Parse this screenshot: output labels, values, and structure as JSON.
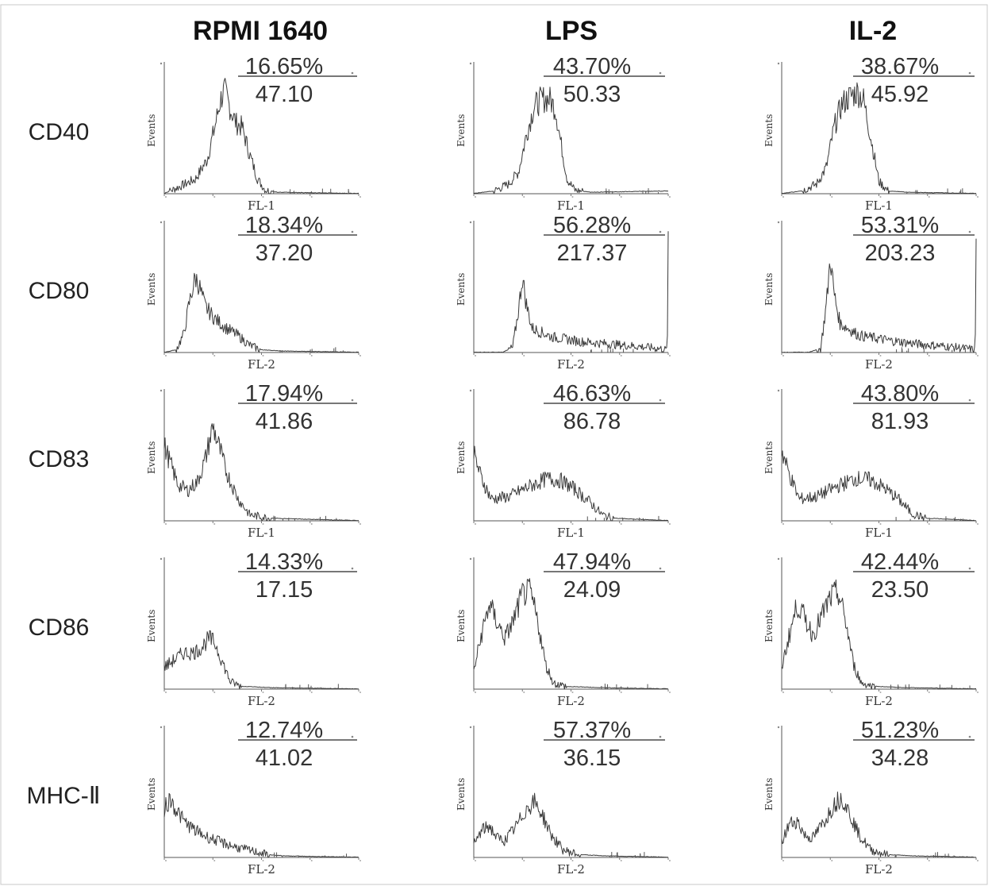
{
  "figure": {
    "columns": [
      "RPMI 1640",
      "LPS",
      "IL-2"
    ],
    "rows": [
      "CD40",
      "CD80",
      "CD83",
      "CD86",
      "MHC-Ⅱ"
    ]
  },
  "chart_data": [
    {
      "type": "area",
      "row": "CD40",
      "column": "RPMI 1640",
      "ylabel": "Events",
      "xlabel": "FL-1",
      "gate_percent": "16.65%",
      "mfi": "47.10",
      "profile": [
        [
          0,
          0
        ],
        [
          0.08,
          0.06
        ],
        [
          0.16,
          0.12
        ],
        [
          0.22,
          0.28
        ],
        [
          0.26,
          0.55
        ],
        [
          0.29,
          0.78
        ],
        [
          0.31,
          0.85
        ],
        [
          0.34,
          0.7
        ],
        [
          0.37,
          0.58
        ],
        [
          0.4,
          0.55
        ],
        [
          0.44,
          0.32
        ],
        [
          0.48,
          0.12
        ],
        [
          0.52,
          0.03
        ],
        [
          0.58,
          0.01
        ],
        [
          1,
          0
        ]
      ],
      "peaks": [
        0.31
      ]
    },
    {
      "type": "area",
      "row": "CD40",
      "column": "LPS",
      "ylabel": "Events",
      "xlabel": "FL-1",
      "gate_percent": "43.70%",
      "mfi": "50.33",
      "profile": [
        [
          0,
          0
        ],
        [
          0.1,
          0.02
        ],
        [
          0.18,
          0.08
        ],
        [
          0.23,
          0.18
        ],
        [
          0.27,
          0.48
        ],
        [
          0.31,
          0.72
        ],
        [
          0.35,
          0.78
        ],
        [
          0.39,
          0.78
        ],
        [
          0.42,
          0.7
        ],
        [
          0.45,
          0.4
        ],
        [
          0.48,
          0.12
        ],
        [
          0.52,
          0.03
        ],
        [
          0.6,
          0.01
        ],
        [
          1,
          0.02
        ]
      ],
      "peaks": [
        0.38
      ]
    },
    {
      "type": "area",
      "row": "CD40",
      "column": "IL-2",
      "ylabel": "Events",
      "xlabel": "FL-1",
      "gate_percent": "38.67%",
      "mfi": "45.92",
      "profile": [
        [
          0,
          0
        ],
        [
          0.1,
          0.02
        ],
        [
          0.18,
          0.08
        ],
        [
          0.23,
          0.22
        ],
        [
          0.27,
          0.55
        ],
        [
          0.31,
          0.74
        ],
        [
          0.35,
          0.8
        ],
        [
          0.39,
          0.84
        ],
        [
          0.42,
          0.78
        ],
        [
          0.46,
          0.45
        ],
        [
          0.5,
          0.1
        ],
        [
          0.55,
          0.02
        ],
        [
          0.65,
          0.01
        ],
        [
          1,
          0
        ]
      ],
      "peaks": [
        0.39
      ]
    },
    {
      "type": "area",
      "row": "CD80",
      "column": "RPMI 1640",
      "ylabel": "Events",
      "xlabel": "FL-2",
      "gate_percent": "18.34%",
      "mfi": "37.20",
      "profile": [
        [
          0,
          0
        ],
        [
          0.06,
          0.02
        ],
        [
          0.1,
          0.15
        ],
        [
          0.13,
          0.42
        ],
        [
          0.16,
          0.62
        ],
        [
          0.18,
          0.55
        ],
        [
          0.21,
          0.38
        ],
        [
          0.26,
          0.28
        ],
        [
          0.32,
          0.2
        ],
        [
          0.38,
          0.14
        ],
        [
          0.44,
          0.06
        ],
        [
          0.5,
          0.02
        ],
        [
          0.6,
          0.01
        ],
        [
          1,
          0
        ]
      ],
      "peaks": [
        0.17
      ]
    },
    {
      "type": "area",
      "row": "CD80",
      "column": "LPS",
      "ylabel": "Events",
      "xlabel": "FL-2",
      "gate_percent": "56.28%",
      "mfi": "217.37",
      "profile": [
        [
          0,
          0
        ],
        [
          0.15,
          0
        ],
        [
          0.2,
          0.04
        ],
        [
          0.23,
          0.35
        ],
        [
          0.25,
          0.62
        ],
        [
          0.27,
          0.4
        ],
        [
          0.3,
          0.2
        ],
        [
          0.4,
          0.13
        ],
        [
          0.55,
          0.09
        ],
        [
          0.7,
          0.07
        ],
        [
          0.85,
          0.05
        ],
        [
          0.97,
          0.03
        ],
        [
          0.995,
          0.02
        ],
        [
          1,
          0.9
        ]
      ],
      "peaks": [
        0.25
      ]
    },
    {
      "type": "area",
      "row": "CD80",
      "column": "IL-2",
      "ylabel": "Events",
      "xlabel": "FL-2",
      "gate_percent": "53.31%",
      "mfi": "203.23",
      "profile": [
        [
          0,
          0
        ],
        [
          0.14,
          0
        ],
        [
          0.2,
          0.03
        ],
        [
          0.23,
          0.4
        ],
        [
          0.25,
          0.78
        ],
        [
          0.27,
          0.48
        ],
        [
          0.3,
          0.24
        ],
        [
          0.4,
          0.14
        ],
        [
          0.55,
          0.1
        ],
        [
          0.7,
          0.07
        ],
        [
          0.85,
          0.05
        ],
        [
          0.97,
          0.03
        ],
        [
          0.995,
          0.02
        ],
        [
          1,
          0.88
        ]
      ],
      "peaks": [
        0.25
      ]
    },
    {
      "type": "area",
      "row": "CD83",
      "column": "RPMI 1640",
      "ylabel": "Events",
      "xlabel": "FL-1",
      "gate_percent": "17.94%",
      "mfi": "41.86",
      "profile": [
        [
          0,
          0.62
        ],
        [
          0.03,
          0.48
        ],
        [
          0.07,
          0.3
        ],
        [
          0.12,
          0.25
        ],
        [
          0.17,
          0.32
        ],
        [
          0.21,
          0.5
        ],
        [
          0.25,
          0.78
        ],
        [
          0.28,
          0.62
        ],
        [
          0.32,
          0.4
        ],
        [
          0.38,
          0.18
        ],
        [
          0.44,
          0.05
        ],
        [
          0.55,
          0.02
        ],
        [
          0.75,
          0.01
        ],
        [
          1,
          0
        ]
      ],
      "peaks": [
        0.25
      ]
    },
    {
      "type": "area",
      "row": "CD83",
      "column": "LPS",
      "ylabel": "Events",
      "xlabel": "FL-1",
      "gate_percent": "46.63%",
      "mfi": "86.78",
      "profile": [
        [
          0,
          0.55
        ],
        [
          0.04,
          0.35
        ],
        [
          0.09,
          0.18
        ],
        [
          0.18,
          0.2
        ],
        [
          0.28,
          0.28
        ],
        [
          0.38,
          0.35
        ],
        [
          0.45,
          0.33
        ],
        [
          0.52,
          0.26
        ],
        [
          0.6,
          0.15
        ],
        [
          0.66,
          0.05
        ],
        [
          0.72,
          0.02
        ],
        [
          0.85,
          0.01
        ],
        [
          1,
          0
        ]
      ],
      "peaks": [
        0.4
      ]
    },
    {
      "type": "area",
      "row": "CD83",
      "column": "IL-2",
      "ylabel": "Events",
      "xlabel": "FL-1",
      "gate_percent": "43.80%",
      "mfi": "81.93",
      "profile": [
        [
          0,
          0.58
        ],
        [
          0.04,
          0.38
        ],
        [
          0.09,
          0.18
        ],
        [
          0.18,
          0.2
        ],
        [
          0.28,
          0.28
        ],
        [
          0.38,
          0.35
        ],
        [
          0.45,
          0.34
        ],
        [
          0.52,
          0.28
        ],
        [
          0.6,
          0.18
        ],
        [
          0.67,
          0.06
        ],
        [
          0.74,
          0.02
        ],
        [
          0.88,
          0.01
        ],
        [
          1,
          0
        ]
      ],
      "peaks": [
        0.42
      ]
    },
    {
      "type": "area",
      "row": "CD86",
      "column": "RPMI 1640",
      "ylabel": "Events",
      "xlabel": "FL-2",
      "gate_percent": "14.33%",
      "mfi": "17.15",
      "profile": [
        [
          0,
          0.18
        ],
        [
          0.05,
          0.24
        ],
        [
          0.1,
          0.3
        ],
        [
          0.15,
          0.3
        ],
        [
          0.19,
          0.34
        ],
        [
          0.23,
          0.42
        ],
        [
          0.26,
          0.38
        ],
        [
          0.3,
          0.22
        ],
        [
          0.34,
          0.06
        ],
        [
          0.4,
          0.02
        ],
        [
          0.55,
          0.01
        ],
        [
          1,
          0
        ]
      ],
      "peaks": [
        0.23
      ]
    },
    {
      "type": "area",
      "row": "CD86",
      "column": "LPS",
      "ylabel": "Events",
      "xlabel": "FL-2",
      "gate_percent": "47.94%",
      "mfi": "24.09",
      "profile": [
        [
          0,
          0.15
        ],
        [
          0.04,
          0.45
        ],
        [
          0.08,
          0.7
        ],
        [
          0.12,
          0.55
        ],
        [
          0.16,
          0.42
        ],
        [
          0.2,
          0.55
        ],
        [
          0.25,
          0.78
        ],
        [
          0.29,
          0.8
        ],
        [
          0.33,
          0.55
        ],
        [
          0.37,
          0.2
        ],
        [
          0.41,
          0.05
        ],
        [
          0.48,
          0.02
        ],
        [
          0.65,
          0.01
        ],
        [
          1,
          0
        ]
      ],
      "peaks": [
        0.08,
        0.28
      ]
    },
    {
      "type": "area",
      "row": "CD86",
      "column": "IL-2",
      "ylabel": "Events",
      "xlabel": "FL-2",
      "gate_percent": "42.44%",
      "mfi": "23.50",
      "profile": [
        [
          0,
          0.18
        ],
        [
          0.04,
          0.45
        ],
        [
          0.08,
          0.7
        ],
        [
          0.12,
          0.58
        ],
        [
          0.16,
          0.45
        ],
        [
          0.2,
          0.58
        ],
        [
          0.25,
          0.75
        ],
        [
          0.29,
          0.8
        ],
        [
          0.33,
          0.55
        ],
        [
          0.37,
          0.2
        ],
        [
          0.41,
          0.05
        ],
        [
          0.48,
          0.02
        ],
        [
          0.65,
          0.01
        ],
        [
          1,
          0
        ]
      ],
      "peaks": [
        0.08,
        0.28
      ]
    },
    {
      "type": "area",
      "row": "MHC-Ⅱ",
      "column": "RPMI 1640",
      "ylabel": "Events",
      "xlabel": "FL-2",
      "gate_percent": "12.74%",
      "mfi": "41.02",
      "profile": [
        [
          0,
          0.4
        ],
        [
          0.03,
          0.48
        ],
        [
          0.06,
          0.4
        ],
        [
          0.1,
          0.3
        ],
        [
          0.16,
          0.22
        ],
        [
          0.22,
          0.17
        ],
        [
          0.3,
          0.12
        ],
        [
          0.38,
          0.08
        ],
        [
          0.46,
          0.05
        ],
        [
          0.54,
          0.02
        ],
        [
          0.62,
          0.01
        ],
        [
          1,
          0
        ]
      ],
      "peaks": [
        0.03
      ]
    },
    {
      "type": "area",
      "row": "MHC-Ⅱ",
      "column": "LPS",
      "ylabel": "Events",
      "xlabel": "FL-2",
      "gate_percent": "57.37%",
      "mfi": "36.15",
      "profile": [
        [
          0,
          0.1
        ],
        [
          0.04,
          0.22
        ],
        [
          0.08,
          0.26
        ],
        [
          0.12,
          0.16
        ],
        [
          0.16,
          0.14
        ],
        [
          0.22,
          0.26
        ],
        [
          0.27,
          0.4
        ],
        [
          0.31,
          0.46
        ],
        [
          0.35,
          0.36
        ],
        [
          0.4,
          0.18
        ],
        [
          0.46,
          0.06
        ],
        [
          0.55,
          0.02
        ],
        [
          0.7,
          0.01
        ],
        [
          1,
          0
        ]
      ],
      "peaks": [
        0.08,
        0.31
      ]
    },
    {
      "type": "area",
      "row": "MHC-Ⅱ",
      "column": "IL-2",
      "ylabel": "Events",
      "xlabel": "FL-2",
      "gate_percent": "51.23%",
      "mfi": "34.28",
      "profile": [
        [
          0,
          0.12
        ],
        [
          0.04,
          0.28
        ],
        [
          0.08,
          0.3
        ],
        [
          0.12,
          0.18
        ],
        [
          0.16,
          0.16
        ],
        [
          0.22,
          0.3
        ],
        [
          0.27,
          0.44
        ],
        [
          0.31,
          0.5
        ],
        [
          0.35,
          0.36
        ],
        [
          0.4,
          0.18
        ],
        [
          0.46,
          0.06
        ],
        [
          0.55,
          0.02
        ],
        [
          0.7,
          0.01
        ],
        [
          1,
          0
        ]
      ],
      "peaks": [
        0.08,
        0.31
      ]
    }
  ]
}
